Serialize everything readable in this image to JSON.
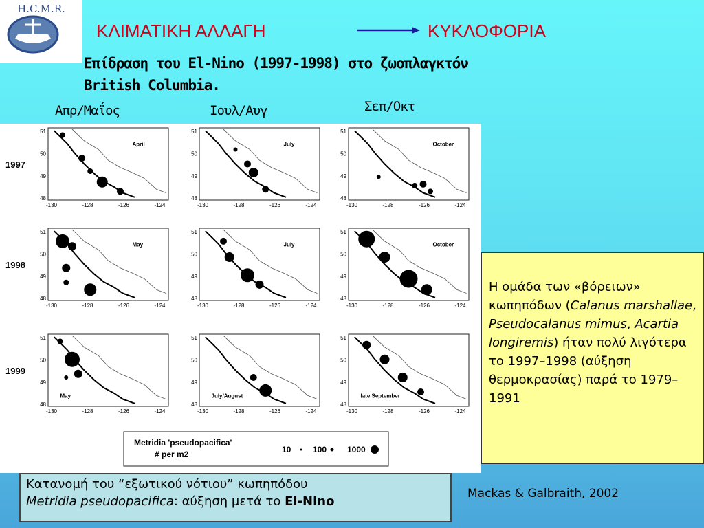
{
  "logo": "H.C.M.R.",
  "title": {
    "left": "ΚΛΙΜΑΤΙΚΗ ΑΛΛΑΓΗ",
    "right": "ΚΥΚΛΟΦΟΡΙΑ"
  },
  "subtitle": [
    "Επίδραση του El-Nino (1997-1998) στο ζωοπλαγκτόν",
    "British Columbia."
  ],
  "columns": [
    "Απρ/Μαΐος",
    "Ιουλ/Αυγ",
    "Σεπ/Οκτ"
  ],
  "figure": {
    "rows": [
      {
        "year": "1997",
        "panels": [
          "April",
          "July",
          "October"
        ]
      },
      {
        "year": "1998",
        "panels": [
          "May",
          "July",
          "October"
        ]
      },
      {
        "year": "1999",
        "panels": [
          "May",
          "July/August",
          "late September"
        ]
      }
    ],
    "lat_ticks": [
      "51",
      "50",
      "49",
      "48"
    ],
    "lon_ticks": [
      "-130",
      "-128",
      "-126",
      "-124"
    ],
    "legend": {
      "title": "Metridia 'pseudopacifica'",
      "unit": "# per m2",
      "sizes": [
        "10",
        "100",
        "1000"
      ]
    }
  },
  "note": [
    {
      "text": "Η ομάδα των «βόρειων» κωπηπόδων (",
      "style": "normal"
    },
    {
      "text": "Calanus marshallae",
      "style": "italic"
    },
    {
      "text": ", ",
      "style": "normal"
    },
    {
      "text": "Pseudocalanus mimus",
      "style": "italic"
    },
    {
      "text": ", ",
      "style": "normal"
    },
    {
      "text": "Acartia longiremis",
      "style": "italic"
    },
    {
      "text": ") ήταν πολύ λιγότερα το 1997–1998 (αύξηση θερμοκρασίας) παρά το 1979–1991",
      "style": "normal"
    }
  ],
  "caption": {
    "line1": "Κατανομή του “εξωτικού νότιου” κωπηπόδου",
    "line2": [
      {
        "text": "Metridia pseudopacifica",
        "style": "italic"
      },
      {
        "text": ":  αύξηση μετά το ",
        "style": "normal"
      },
      {
        "text": "El-Nino",
        "style": "bold"
      }
    ]
  },
  "citation": "Mackas & Galbraith, 2002"
}
